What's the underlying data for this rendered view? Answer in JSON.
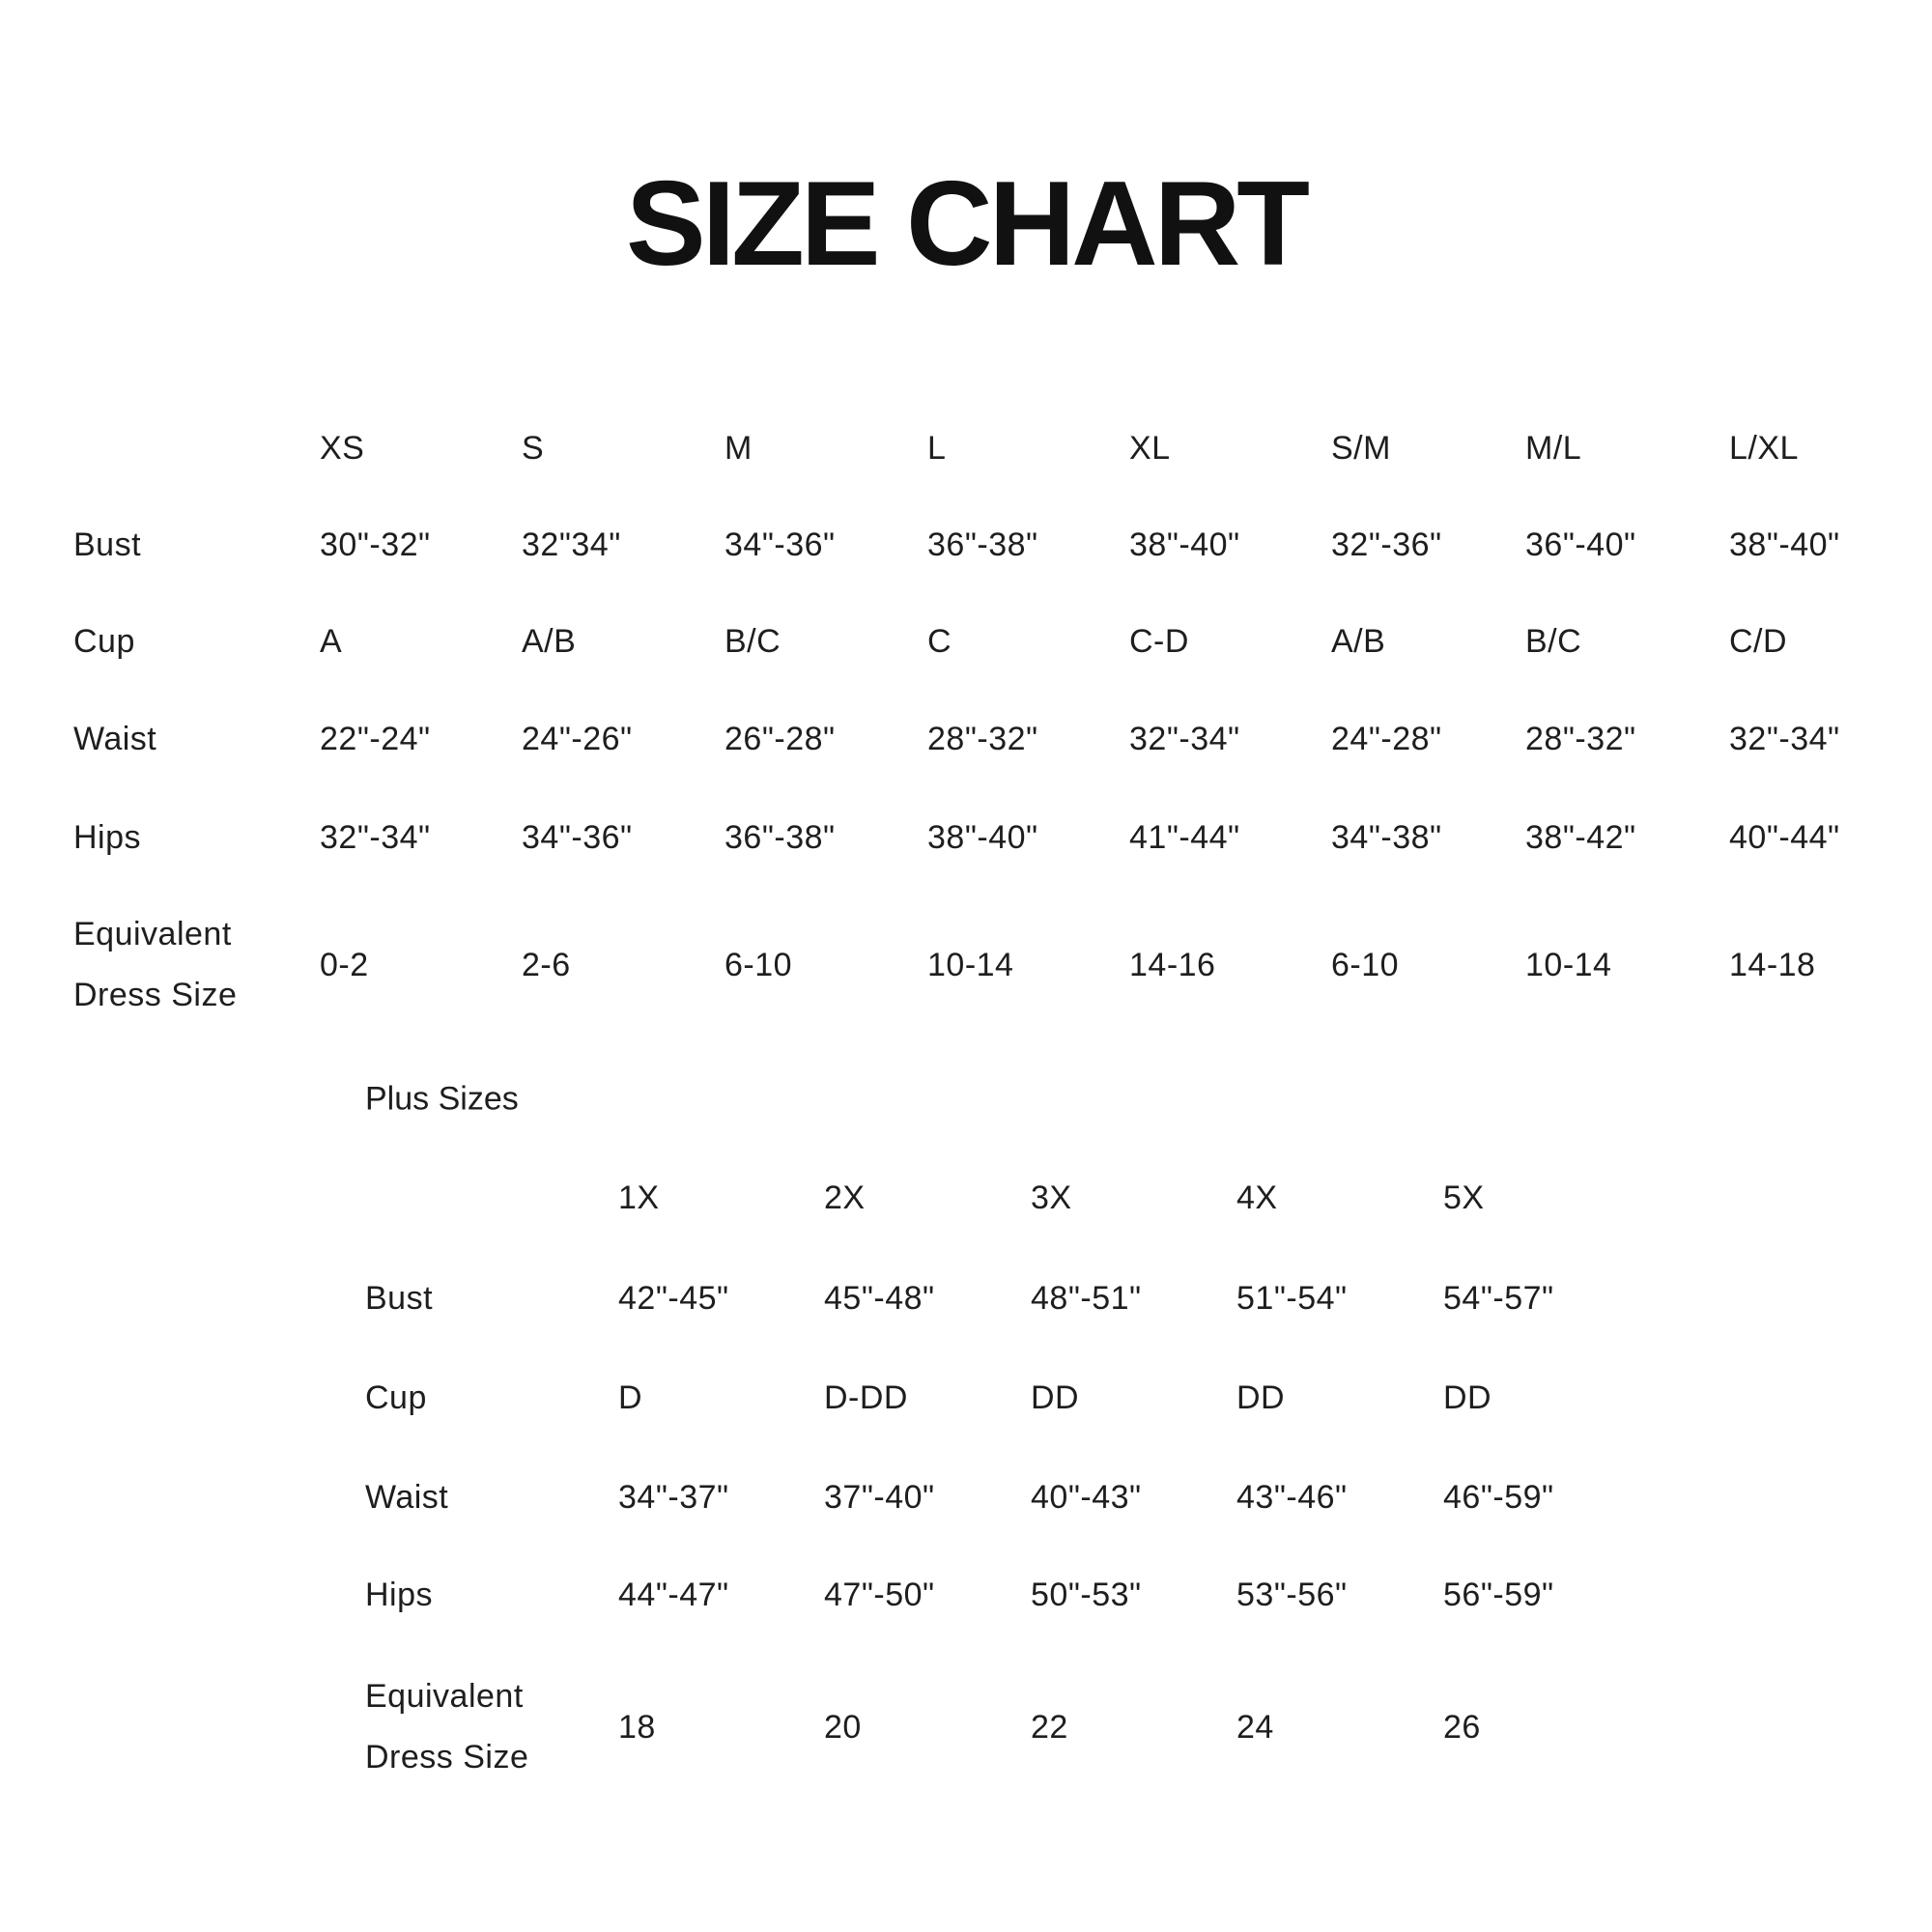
{
  "title": "SIZE CHART",
  "main_table": {
    "columns": [
      "XS",
      "S",
      "M",
      "L",
      "XL",
      "S/M",
      "M/L",
      "L/XL"
    ],
    "rows": [
      {
        "label": "Bust",
        "values": [
          "30\"-32\"",
          "32\"34\"",
          "34\"-36\"",
          "36\"-38\"",
          "38\"-40\"",
          "32\"-36\"",
          "36\"-40\"",
          "38\"-40\""
        ]
      },
      {
        "label": "Cup",
        "values": [
          "A",
          "A/B",
          "B/C",
          "C",
          "C-D",
          "A/B",
          "B/C",
          "C/D"
        ]
      },
      {
        "label": "Waist",
        "values": [
          "22\"-24\"",
          "24\"-26\"",
          "26\"-28\"",
          "28\"-32\"",
          "32\"-34\"",
          "24\"-28\"",
          "28\"-32\"",
          "32\"-34\""
        ]
      },
      {
        "label": "Hips",
        "values": [
          "32\"-34\"",
          "34\"-36\"",
          "36\"-38\"",
          "38\"-40\"",
          "41\"-44\"",
          "34\"-38\"",
          "38\"-42\"",
          "40\"-44\""
        ]
      },
      {
        "label": "Equivalent Dress Size",
        "label_lines": [
          "Equivalent",
          "Dress Size"
        ],
        "values": [
          "0-2",
          "2-6",
          "6-10",
          "10-14",
          "14-16",
          "6-10",
          "10-14",
          "14-18"
        ]
      }
    ]
  },
  "plus_table": {
    "heading": "Plus Sizes",
    "columns": [
      "1X",
      "2X",
      "3X",
      "4X",
      "5X"
    ],
    "rows": [
      {
        "label": "Bust",
        "values": [
          "42\"-45\"",
          "45\"-48\"",
          "48\"-51\"",
          "51\"-54\"",
          "54\"-57\""
        ]
      },
      {
        "label": "Cup",
        "values": [
          "D",
          "D-DD",
          "DD",
          "DD",
          "DD"
        ]
      },
      {
        "label": "Waist",
        "values": [
          "34\"-37\"",
          "37\"-40\"",
          "40\"-43\"",
          "43\"-46\"",
          "46\"-59\""
        ]
      },
      {
        "label": "Hips",
        "values": [
          "44\"-47\"",
          "47\"-50\"",
          "50\"-53\"",
          "53\"-56\"",
          "56\"-59\""
        ]
      },
      {
        "label": "Equivalent Dress Size",
        "label_lines": [
          "Equivalent",
          "Dress Size"
        ],
        "values": [
          "18",
          "20",
          "22",
          "24",
          "26"
        ]
      }
    ]
  }
}
